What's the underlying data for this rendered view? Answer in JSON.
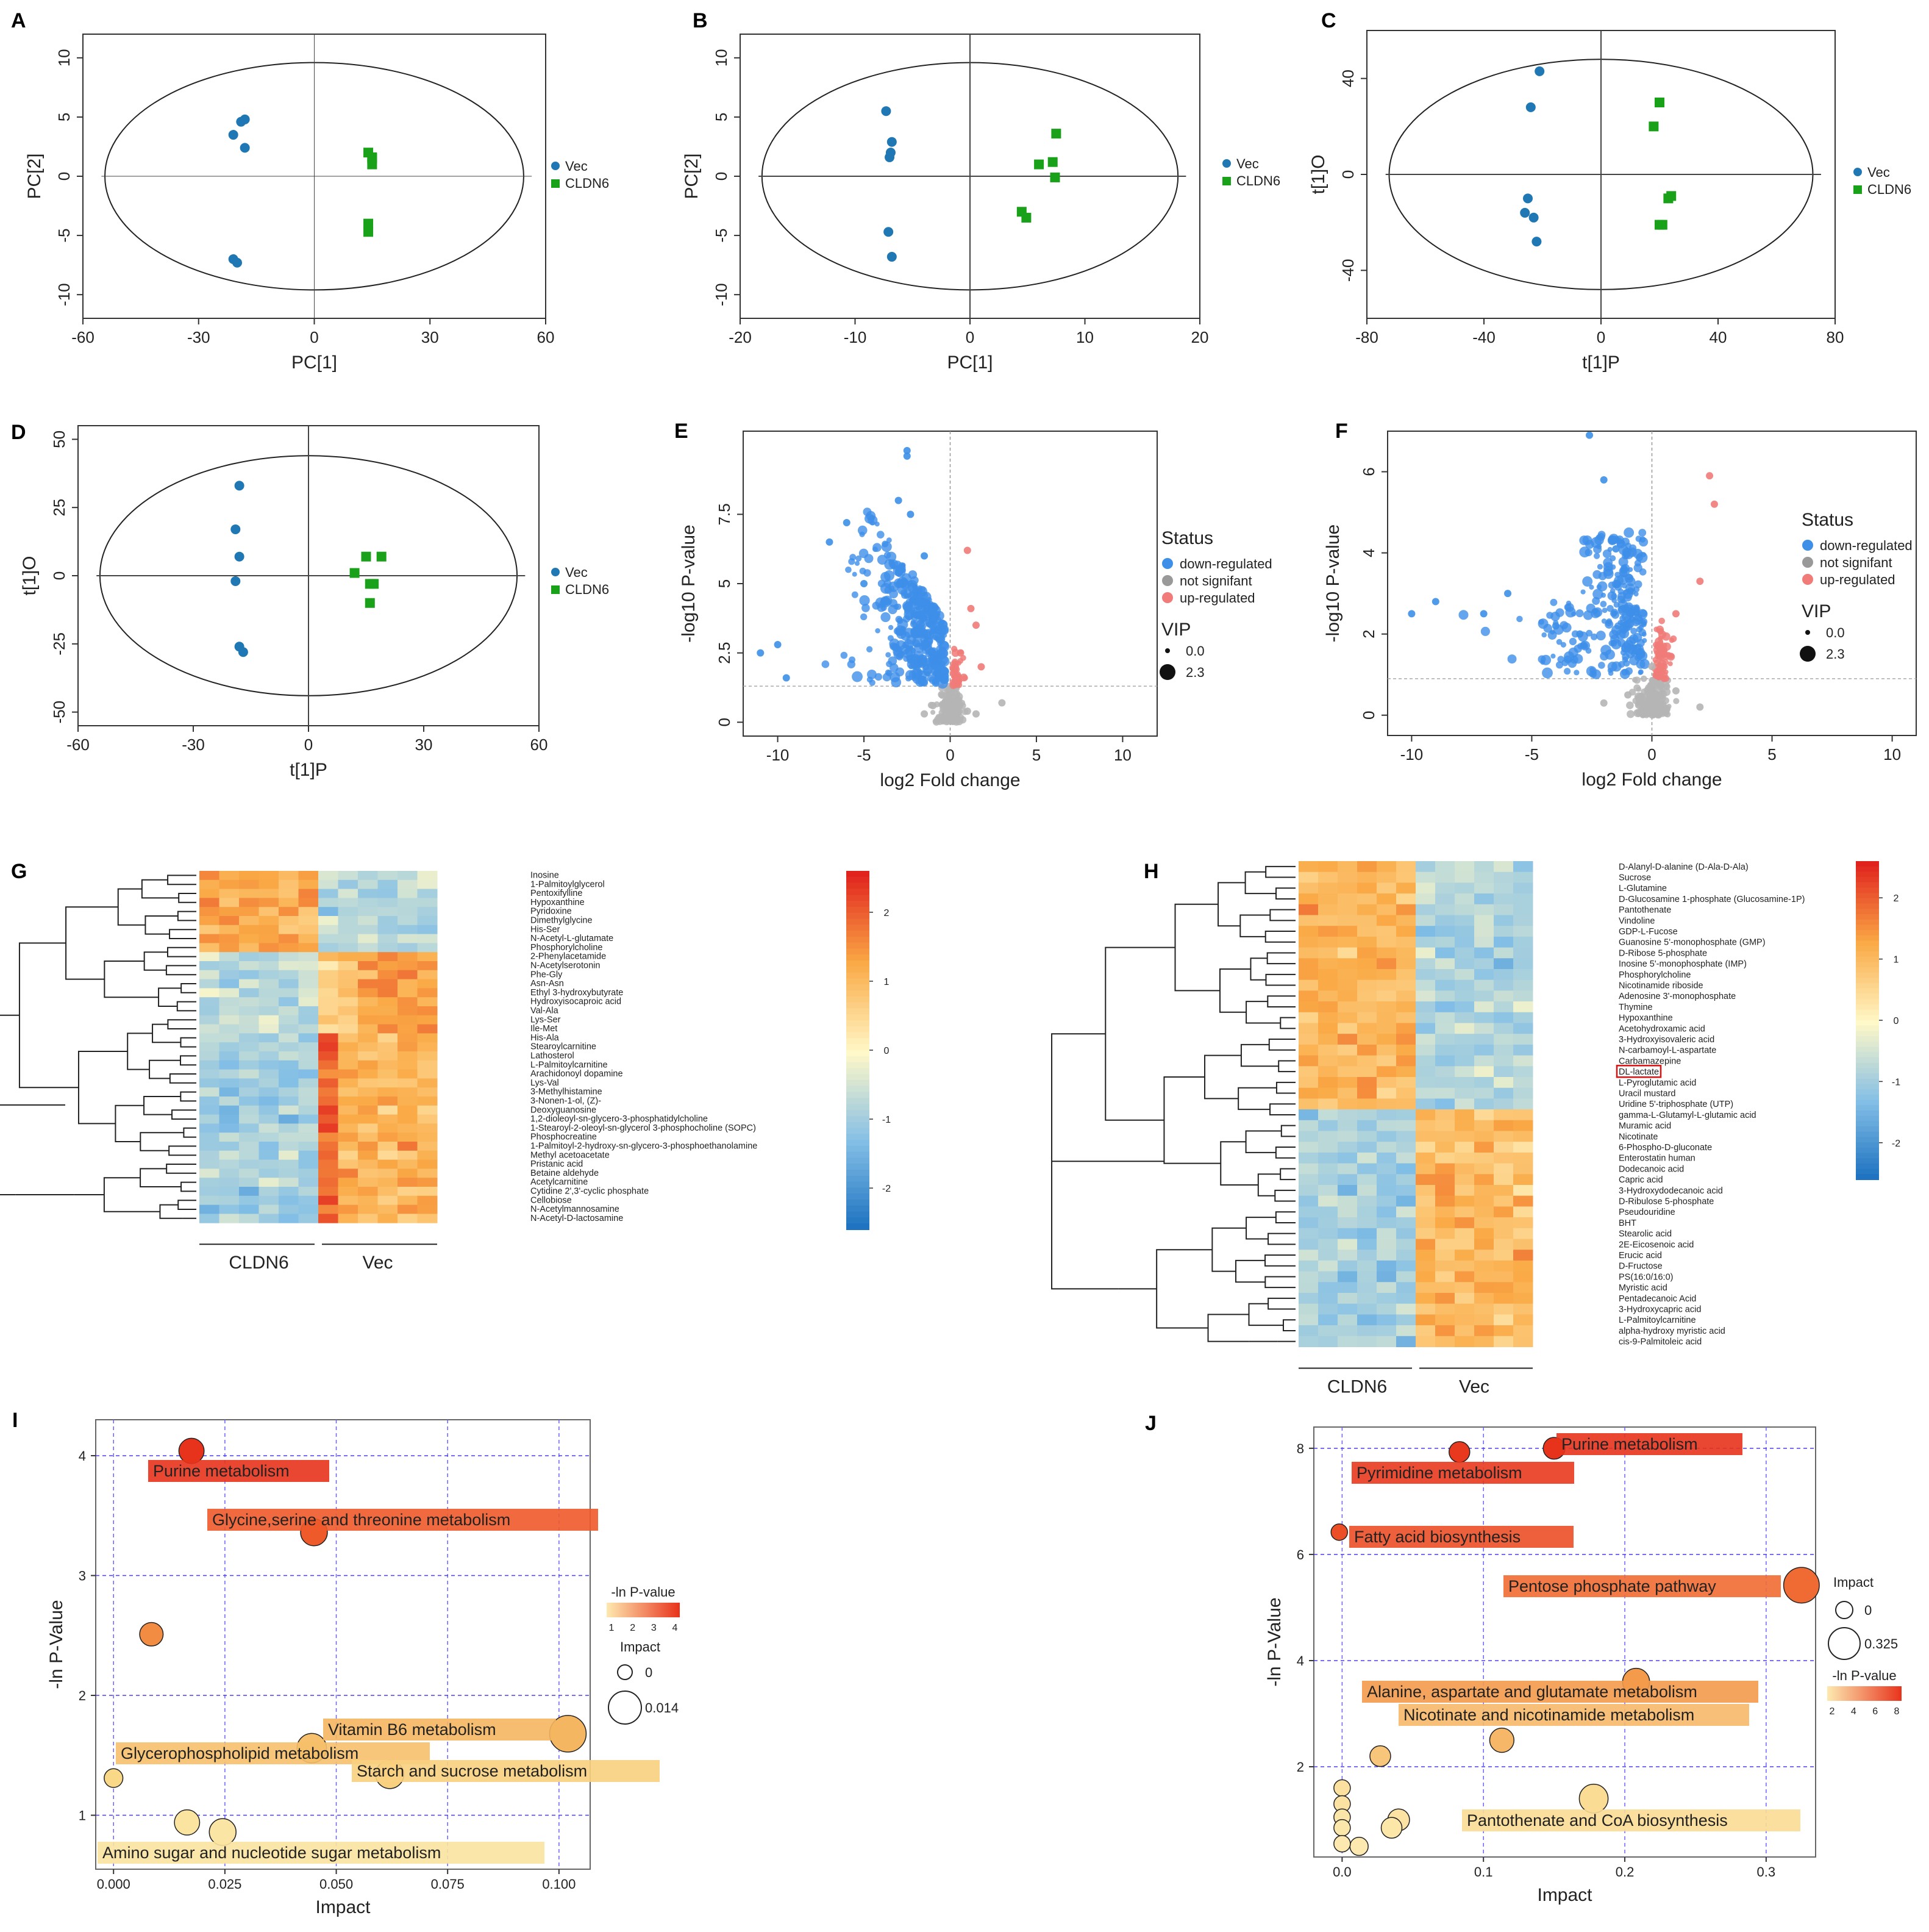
{
  "panels": {
    "A": {
      "label": "A",
      "xlabel": "PC[1]",
      "ylabel": "PC[2]",
      "xticks": [
        "-60",
        "-30",
        "0",
        "30",
        "60"
      ],
      "yticks": [
        "10",
        "5",
        "0",
        "-5",
        "-10"
      ],
      "legend": [
        "Vec",
        "CLDN6"
      ]
    },
    "B": {
      "label": "B",
      "xlabel": "PC[1]",
      "ylabel": "PC[2]",
      "xticks": [
        "-20",
        "-10",
        "0",
        "10",
        "20"
      ],
      "yticks": [
        "10",
        "5",
        "0",
        "-5",
        "-10"
      ],
      "legend": [
        "Vec",
        "CLDN6"
      ]
    },
    "C": {
      "label": "C",
      "xlabel": "t[1]P",
      "ylabel": "t[1]O",
      "xticks": [
        "-80",
        "-40",
        "0",
        "40",
        "80"
      ],
      "yticks": [
        "40",
        "0",
        "-40"
      ],
      "legend": [
        "Vec",
        "CLDN6"
      ]
    },
    "D": {
      "label": "D",
      "xlabel": "t[1]P",
      "ylabel": "t[1]O",
      "xticks": [
        "-60",
        "-30",
        "0",
        "30",
        "60"
      ],
      "yticks": [
        "50",
        "25",
        "0",
        "-25",
        "-50"
      ],
      "legend": [
        "Vec",
        "CLDN6"
      ]
    },
    "E": {
      "label": "E",
      "xlabel": "log2 Fold change",
      "ylabel": "-log10 P-value",
      "xticks": [
        "-10",
        "-5",
        "0",
        "5",
        "10"
      ],
      "yticks": [
        "7.5",
        "5",
        "2.5",
        "0"
      ],
      "legend_title": "Status",
      "status": [
        "down-regulated",
        "not signifant",
        "up-regulated"
      ],
      "vip_title": "VIP",
      "vip": [
        "0.0",
        "2.3"
      ]
    },
    "F": {
      "label": "F",
      "xlabel": "log2 Fold change",
      "ylabel": "-log10 P-value",
      "xticks": [
        "-10",
        "-5",
        "0",
        "5",
        "10"
      ],
      "yticks": [
        "6",
        "4",
        "2",
        "0"
      ],
      "legend_title": "Status",
      "status": [
        "down-regulated",
        "not signifant",
        "up-regulated"
      ],
      "vip_title": "VIP",
      "vip": [
        "0.0",
        "2.3"
      ]
    },
    "G": {
      "label": "G",
      "groups": [
        "CLDN6",
        "Vec"
      ],
      "scale": [
        "2",
        "1",
        "0",
        "-1",
        "-2"
      ],
      "rows": [
        "Inosine",
        "1-Palmitoylglycerol",
        "Pentoxifylline",
        "Hypoxanthine",
        "Pyridoxine",
        "Dimethylglycine",
        "His-Ser",
        "N-Acetyl-L-glutamate",
        "Phosphorylcholine",
        "2-Phenylacetamide",
        "N-Acetylserotonin",
        "Phe-Gly",
        "Asn-Asn",
        "Ethyl 3-hydroxybutyrate",
        "Hydroxyisocaproic acid",
        "Val-Ala",
        "Lys-Ser",
        "Ile-Met",
        "His-Ala",
        "Stearoylcarnitine",
        "Lathosterol",
        "L-Palmitoylcarnitine",
        "Arachidonoyl dopamine",
        "Lys-Val",
        "3-Methylhistamine",
        "3-Nonen-1-ol, (Z)-",
        "Deoxyguanosine",
        "1,2-dioleoyl-sn-glycero-3-phosphatidylcholine",
        "1-Stearoyl-2-oleoyl-sn-glycerol 3-phosphocholine (SOPC)",
        "Phosphocreatine",
        "1-Palmitoyl-2-hydroxy-sn-glycero-3-phosphoethanolamine",
        "Methyl acetoacetate",
        "Pristanic acid",
        "Betaine aldehyde",
        "Acetylcarnitine",
        "Cytidine 2',3'-cyclic phosphate",
        "Cellobiose",
        "N-Acetylmannosamine",
        "N-Acetyl-D-lactosamine"
      ]
    },
    "H": {
      "label": "H",
      "groups": [
        "CLDN6",
        "Vec"
      ],
      "scale": [
        "2",
        "1",
        "0",
        "-1",
        "-2"
      ],
      "highlight": "DL-lactate",
      "rows": [
        "D-Alanyl-D-alanine (D-Ala-D-Ala)",
        "Sucrose",
        "L-Glutamine",
        "D-Glucosamine 1-phosphate (Glucosamine-1P)",
        "Pantothenate",
        "Vindoline",
        "GDP-L-Fucose",
        "Guanosine 5'-monophosphate (GMP)",
        "D-Ribose 5-phosphate",
        "Inosine 5'-monophosphate (IMP)",
        "Phosphorylcholine",
        "Nicotinamide riboside",
        "Adenosine 3'-monophosphate",
        "Thymine",
        "Hypoxanthine",
        "Acetohydroxamic acid",
        "3-Hydroxyisovaleric acid",
        "N-carbamoyl-L-aspartate",
        "Carbamazepine",
        "DL-lactate",
        "L-Pyroglutamic acid",
        "Uracil mustard",
        "Uridine 5'-triphosphate (UTP)",
        "gamma-L-Glutamyl-L-glutamic acid",
        "Muramic acid",
        "Nicotinate",
        "6-Phospho-D-gluconate",
        "Enterostatin human",
        "Dodecanoic acid",
        "Capric acid",
        "3-Hydroxydodecanoic acid",
        "D-Ribulose 5-phosphate",
        "Pseudouridine",
        "BHT",
        "Stearolic acid",
        "2E-Eicosenoic acid",
        "Erucic acid",
        "D-Fructose",
        "PS(16:0/16:0)",
        "Myristic acid",
        "Pentadecanoic Acid",
        "3-Hydroxycapric acid",
        "L-Palmitoylcarnitine",
        "alpha-hydroxy myristic acid",
        "cis-9-Palmitoleic acid"
      ]
    },
    "I": {
      "label": "I",
      "xlabel": "Impact",
      "ylabel": "-ln P-Value",
      "xticks": [
        "0.000",
        "0.025",
        "0.050",
        "0.075",
        "0.100"
      ],
      "yticks": [
        "4",
        "3",
        "2",
        "1"
      ],
      "color_title": "-ln P-value",
      "color_ticks": [
        "1",
        "2",
        "3",
        "4"
      ],
      "size_title": "Impact",
      "size_vals": [
        "0",
        "0.014"
      ]
    },
    "J": {
      "label": "J",
      "xlabel": "Impact",
      "ylabel": "-ln P-Value",
      "xticks": [
        "0.0",
        "0.1",
        "0.2",
        "0.3"
      ],
      "yticks": [
        "8",
        "6",
        "4",
        "2"
      ],
      "size_title": "Impact",
      "size_vals": [
        "0",
        "0.325"
      ],
      "color_title": "-ln P-value",
      "color_ticks": [
        "2",
        "4",
        "6",
        "8"
      ]
    }
  },
  "chart_data": [
    {
      "panel": "A",
      "type": "scatter",
      "xlabel": "PC[1]",
      "ylabel": "PC[2]",
      "xlim": [
        -60,
        60
      ],
      "ylim": [
        -12,
        12
      ],
      "series": [
        {
          "name": "Vec",
          "x": [
            -21,
            -18,
            -19,
            -18,
            -21,
            -20
          ],
          "y": [
            3.5,
            4.8,
            4.6,
            2.4,
            -7.0,
            -7.3
          ]
        },
        {
          "name": "CLDN6",
          "x": [
            14,
            15,
            15,
            15,
            14,
            14
          ],
          "y": [
            2.0,
            1.5,
            1.6,
            1.0,
            -4.0,
            -4.7
          ]
        }
      ]
    },
    {
      "panel": "B",
      "type": "scatter",
      "xlabel": "PC[1]",
      "ylabel": "PC[2]",
      "xlim": [
        -20,
        20
      ],
      "ylim": [
        -12,
        12
      ],
      "series": [
        {
          "name": "Vec",
          "x": [
            -7.3,
            -6.8,
            -6.9,
            -7.0,
            -7.1,
            -6.8
          ],
          "y": [
            5.5,
            2.9,
            2.0,
            1.6,
            -4.7,
            -6.8
          ]
        },
        {
          "name": "CLDN6",
          "x": [
            7.5,
            7.2,
            6.0,
            7.4,
            4.5,
            4.9
          ],
          "y": [
            3.6,
            1.2,
            1.0,
            -0.1,
            -3.0,
            -3.5
          ]
        }
      ]
    },
    {
      "panel": "C",
      "type": "scatter",
      "xlabel": "t[1]P",
      "ylabel": "t[1]O",
      "xlim": [
        -80,
        80
      ],
      "ylim": [
        -60,
        60
      ],
      "series": [
        {
          "name": "Vec",
          "x": [
            -21,
            -24,
            -25,
            -26,
            -23,
            -22
          ],
          "y": [
            43,
            28,
            -10,
            -16,
            -18,
            -28
          ]
        },
        {
          "name": "CLDN6",
          "x": [
            20,
            18,
            24,
            23,
            20,
            21
          ],
          "y": [
            30,
            20,
            -9,
            -10,
            -21,
            -21
          ]
        }
      ]
    },
    {
      "panel": "D",
      "type": "scatter",
      "xlabel": "t[1]P",
      "ylabel": "t[1]O",
      "xlim": [
        -60,
        60
      ],
      "ylim": [
        -55,
        55
      ],
      "series": [
        {
          "name": "Vec",
          "x": [
            -18,
            -19,
            -18,
            -19,
            -18,
            -17
          ],
          "y": [
            33,
            17,
            7,
            -2,
            -26,
            -28
          ]
        },
        {
          "name": "CLDN6",
          "x": [
            12,
            15,
            19,
            16,
            17,
            16
          ],
          "y": [
            1,
            7,
            7,
            -3,
            -3,
            -10
          ]
        }
      ]
    },
    {
      "panel": "E",
      "type": "scatter",
      "xlabel": "log2 Fold change",
      "ylabel": "-log10 P-value",
      "xlim": [
        -12,
        12
      ],
      "ylim": [
        -0.5,
        10.5
      ],
      "series": [
        {
          "name": "down-regulated",
          "note": "~400 points",
          "x": [
            -11,
            -10,
            -9.5,
            -7,
            -6,
            -5,
            -3,
            -2.5,
            -2.5,
            -2.3,
            -1.5,
            -1,
            -0.5
          ],
          "y": [
            2.5,
            2.8,
            1.6,
            6.5,
            7.2,
            5,
            8,
            9.8,
            9.6,
            7.5,
            6,
            4,
            3
          ]
        },
        {
          "name": "not signifant",
          "x": [
            -1.5,
            -1,
            -0.5,
            0,
            0.5,
            1,
            1.5,
            3
          ],
          "y": [
            0.3,
            0.6,
            1,
            0.5,
            0.8,
            0.4,
            0.3,
            0.7
          ]
        },
        {
          "name": "up-regulated",
          "x": [
            0.3,
            0.6,
            1,
            1.2,
            1.5,
            1.8
          ],
          "y": [
            2,
            2.5,
            6.2,
            4.1,
            3.5,
            2
          ]
        }
      ]
    },
    {
      "panel": "F",
      "type": "scatter",
      "xlabel": "log2 Fold change",
      "ylabel": "-log10 P-value",
      "xlim": [
        -11,
        11
      ],
      "ylim": [
        -0.5,
        7
      ],
      "series": [
        {
          "name": "down-regulated",
          "note": "~250 points",
          "x": [
            -10,
            -9,
            -7,
            -6,
            -4,
            -3,
            -2.6,
            -2,
            -1.5
          ],
          "y": [
            2.5,
            2.8,
            2.5,
            3.0,
            2.2,
            2.0,
            6.9,
            5.8,
            4.1
          ]
        },
        {
          "name": "not signifant",
          "x": [
            -2,
            -1,
            0,
            1,
            2
          ],
          "y": [
            0.3,
            0.5,
            1.2,
            0.6,
            0.2
          ]
        },
        {
          "name": "up-regulated",
          "x": [
            0.5,
            1,
            2,
            2.4,
            2.6
          ],
          "y": [
            1.5,
            2.5,
            3.3,
            5.9,
            5.2
          ]
        }
      ]
    },
    {
      "panel": "I",
      "type": "scatter",
      "xlabel": "Impact",
      "ylabel": "-ln P-Value",
      "xlim": [
        -0.004,
        0.107
      ],
      "ylim": [
        0.55,
        4.3
      ],
      "points": [
        {
          "name": "Purine metabolism",
          "x": 0.0175,
          "y": 4.04,
          "size": 0.004,
          "color": "#e8331c"
        },
        {
          "name": "Glycine,serine and threonine metabolism",
          "x": 0.045,
          "y": 3.36,
          "size": 0.005,
          "color": "#ef5a2a"
        },
        {
          "name": "",
          "x": 0.0085,
          "y": 2.51,
          "size": 0.003,
          "color": "#f28c42"
        },
        {
          "name": "Vitamin B6 metabolism",
          "x": 0.102,
          "y": 1.68,
          "size": 0.014,
          "color": "#f5b661"
        },
        {
          "name": "Glycerophospholipid metabolism",
          "x": 0.0445,
          "y": 1.56,
          "size": 0.007,
          "color": "#f6c06c"
        },
        {
          "name": "Starch and sucrose metabolism",
          "x": 0.062,
          "y": 1.34,
          "size": 0.006,
          "color": "#f8d080"
        },
        {
          "name": "",
          "x": 0.0,
          "y": 1.31,
          "size": 0.001,
          "color": "#f9d888"
        },
        {
          "name": "Amino sugar and nucleotide sugar metabolism",
          "x": 0.0165,
          "y": 0.94,
          "size": 0.004,
          "color": "#fbe3a0"
        },
        {
          "name": "",
          "x": 0.0245,
          "y": 0.86,
          "size": 0.005,
          "color": "#fbe5a5"
        }
      ]
    },
    {
      "panel": "J",
      "type": "scatter",
      "xlabel": "Impact",
      "ylabel": "-ln P-Value",
      "xlim": [
        -0.02,
        0.335
      ],
      "ylim": [
        0.3,
        8.4
      ],
      "points": [
        {
          "name": "Purine metabolism",
          "x": 0.15,
          "y": 8.0,
          "size": 0.05,
          "color": "#e8331c"
        },
        {
          "name": "Pyrimidine metabolism",
          "x": 0.083,
          "y": 7.93,
          "size": 0.04,
          "color": "#e8381e"
        },
        {
          "name": "Fatty acid biosynthesis",
          "x": -0.002,
          "y": 6.42,
          "size": 0.01,
          "color": "#ec4e26"
        },
        {
          "name": "Pentose phosphate pathway",
          "x": 0.325,
          "y": 5.42,
          "size": 0.3,
          "color": "#ef6b33"
        },
        {
          "name": "Alanine, aspartate and glutamate metabolism",
          "x": 0.208,
          "y": 3.6,
          "size": 0.12,
          "color": "#f39a4b"
        },
        {
          "name": "Nicotinate and nicotinamide metabolism",
          "x": 0.113,
          "y": 2.5,
          "size": 0.08,
          "color": "#f6b868"
        },
        {
          "name": "Pantothenate and CoA biosynthesis",
          "x": 0.178,
          "y": 1.4,
          "size": 0.15,
          "color": "#fbdc94"
        },
        {
          "name": "",
          "x": 0.027,
          "y": 2.2,
          "size": 0.04,
          "color": "#f8c67a"
        },
        {
          "name": "",
          "x": 0.04,
          "y": 1.0,
          "size": 0.05,
          "color": "#fce3a3"
        },
        {
          "name": "",
          "x": 0.035,
          "y": 0.85,
          "size": 0.04,
          "color": "#fce6a8"
        },
        {
          "name": "",
          "x": 0.012,
          "y": 0.5,
          "size": 0.02,
          "color": "#fde9b0"
        },
        {
          "name": "",
          "x": 0.0,
          "y": 1.6,
          "size": 0.01,
          "color": "#fbe0a0"
        },
        {
          "name": "",
          "x": 0.0,
          "y": 1.3,
          "size": 0.01,
          "color": "#fbe2a3"
        },
        {
          "name": "",
          "x": 0.0,
          "y": 1.05,
          "size": 0.01,
          "color": "#fce5a8"
        },
        {
          "name": "",
          "x": 0.0,
          "y": 0.85,
          "size": 0.01,
          "color": "#fce7ab"
        },
        {
          "name": "",
          "x": 0.0,
          "y": 0.55,
          "size": 0.01,
          "color": "#fde9b0"
        }
      ]
    }
  ]
}
